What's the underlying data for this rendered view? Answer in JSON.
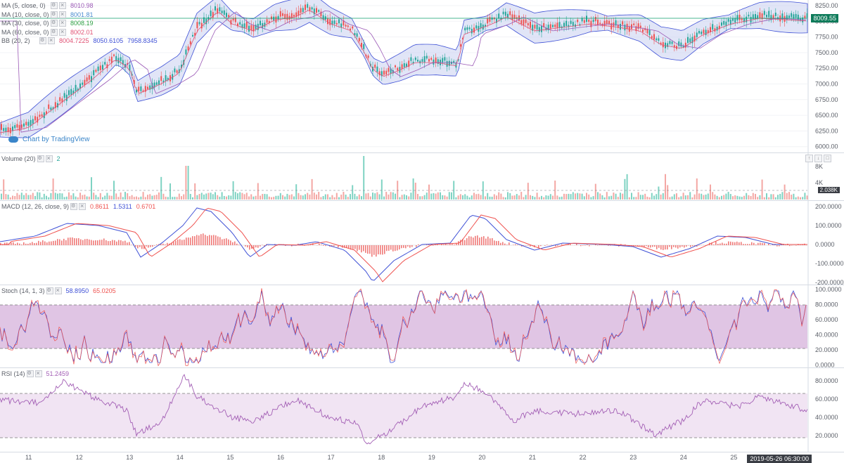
{
  "main": {
    "ma_rows": [
      {
        "name": "MA (5, close, 0)",
        "value": "8010.98",
        "color": "#9b59b6"
      },
      {
        "name": "MA (10, close, 0)",
        "value": "8001.81",
        "color": "#4a8ccf"
      },
      {
        "name": "MA (30, close, 0)",
        "value": "8008.19",
        "color": "#2ea043"
      },
      {
        "name": "MA (60, close, 0)",
        "value": "8002.01",
        "color": "#e05274"
      }
    ],
    "bb": {
      "name": "BB (20, 2)",
      "basis": "8004.7225",
      "upper": "8050.6105",
      "lower": "7958.8345"
    },
    "price_tag": "8009.55",
    "price_levels": [
      "8250.00",
      "8000.00",
      "7750.00",
      "7500.00",
      "7250.00",
      "7000.00",
      "6750.00",
      "6500.00",
      "6250.00",
      "6000.00"
    ],
    "watermark": "Chart by TradingView"
  },
  "volume": {
    "name": "Volume (20)",
    "value": "2",
    "levels": [
      "8K",
      "4K"
    ],
    "tag": "2.038K"
  },
  "macd": {
    "name": "MACD (12, 26, close, 9)",
    "hist": "0.8611",
    "macd": "1.5311",
    "signal": "0.6701",
    "levels": [
      "200.0000",
      "100.0000",
      "0.0000",
      "-100.0000",
      "-200.0000"
    ]
  },
  "stoch": {
    "name": "Stoch (14, 1, 3)",
    "k": "58.8950",
    "d": "65.0205",
    "levels": [
      "100.0000",
      "80.0000",
      "60.0000",
      "40.0000",
      "20.0000",
      "0.0000"
    ]
  },
  "rsi": {
    "name": "RSI (14)",
    "value": "51.2459",
    "levels": [
      "80.0000",
      "60.0000",
      "40.0000",
      "20.0000"
    ]
  },
  "xaxis": {
    "days": [
      "11",
      "12",
      "13",
      "14",
      "15",
      "16",
      "17",
      "18",
      "19",
      "20",
      "21",
      "22",
      "23",
      "24",
      "25"
    ],
    "cursor_time": "2019-05-26 06:30:00"
  },
  "colors": {
    "up": "#26a69a",
    "down": "#ef5350",
    "bb_fill": "#c9cff0",
    "bb_line": "#3f51d6",
    "stoch_fill": "#d8b6dd",
    "rsi_fill": "#f1e4f3",
    "rsi_line": "#a35fb5"
  }
}
